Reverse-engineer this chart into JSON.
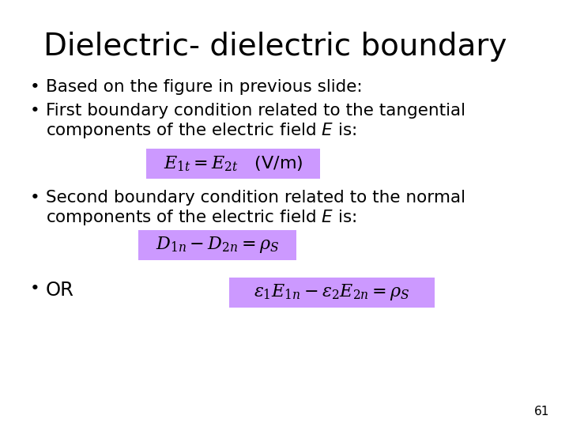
{
  "title": "Dielectric- dielectric boundary",
  "bg_color": "#ffffff",
  "title_color": "#000000",
  "title_fontsize": 28,
  "bullet_fontsize": 15.5,
  "formula_fontsize": 16,
  "highlight_color": "#cc99ff",
  "text_color": "#000000",
  "slide_number": "61",
  "bullet1": "Based on the figure in previous slide:",
  "bullet2_line1": "First boundary condition related to the tangential",
  "bullet2_line2": "components of the electric field $E$ is:",
  "formula1": "$E_{1t} = E_{2t}$   (V/m)",
  "bullet3_line1": "Second boundary condition related to the normal",
  "bullet3_line2": "components of the electric field $E$ is:",
  "formula2": "$D_{1n} - D_{2n} = \\rho_S$",
  "bullet4": "OR",
  "formula3": "$\\varepsilon_1 E_{1n} - \\varepsilon_2 E_{2n} = \\rho_S$"
}
